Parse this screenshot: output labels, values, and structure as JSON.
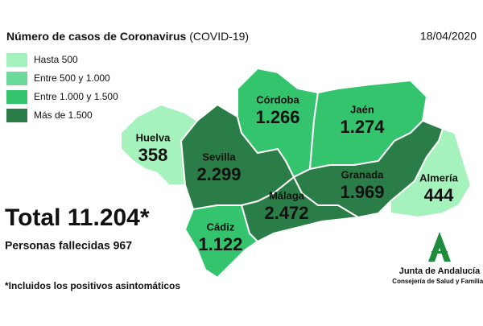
{
  "header": {
    "title": "Número de casos de Coronavirus",
    "subtitle": "(COVID-19)",
    "date": "18/04/2020"
  },
  "legend": [
    {
      "label": "Hasta 500",
      "color": "#a6f2bd"
    },
    {
      "label": "Entre 500 y 1.000",
      "color": "#6ad99a"
    },
    {
      "label": "Entre 1.000 y 1.500",
      "color": "#35c46e"
    },
    {
      "label": "Más de 1.500",
      "color": "#2b7d47"
    }
  ],
  "provinces": [
    {
      "name": "Huelva",
      "value": "358",
      "color": "#a6f2bd"
    },
    {
      "name": "Sevilla",
      "value": "2.299",
      "color": "#2b7d47"
    },
    {
      "name": "Córdoba",
      "value": "1.266",
      "color": "#35c46e"
    },
    {
      "name": "Jaén",
      "value": "1.274",
      "color": "#35c46e"
    },
    {
      "name": "Granada",
      "value": "1.969",
      "color": "#2b7d47"
    },
    {
      "name": "Almería",
      "value": "444",
      "color": "#a6f2bd"
    },
    {
      "name": "Málaga",
      "value": "2.472",
      "color": "#2b7d47"
    },
    {
      "name": "Cádiz",
      "value": "1.122",
      "color": "#35c46e"
    }
  ],
  "total": "Total 11.204*",
  "deaths": "Personas fallecidas 967",
  "footnote": "*Incluidos los positivos asintomáticos",
  "logo": {
    "name": "Junta de Andalucía",
    "department": "Consejería de Salud y Familias"
  }
}
